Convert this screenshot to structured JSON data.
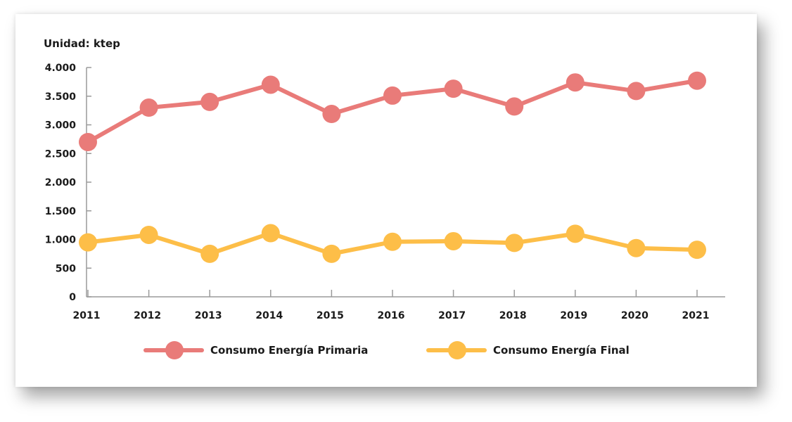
{
  "chart_data": {
    "type": "line",
    "unit_label": "Unidad: ktep",
    "categories": [
      "2011",
      "2012",
      "2013",
      "2014",
      "2015",
      "2016",
      "2017",
      "2018",
      "2019",
      "2020",
      "2021"
    ],
    "y_ticks": [
      {
        "value": 0,
        "label": "0"
      },
      {
        "value": 500,
        "label": "500"
      },
      {
        "value": 1000,
        "label": "1.000"
      },
      {
        "value": 1500,
        "label": "1.500"
      },
      {
        "value": 2000,
        "label": "2.000"
      },
      {
        "value": 2500,
        "label": "2.500"
      },
      {
        "value": 3000,
        "label": "3.000"
      },
      {
        "value": 3500,
        "label": "3.500"
      },
      {
        "value": 4000,
        "label": "4.000"
      }
    ],
    "ylim": [
      0,
      4000
    ],
    "grid": false,
    "legend_position": "bottom",
    "series": [
      {
        "name": "Consumo Energía Primaria",
        "color": "#E97B79",
        "values": [
          2700,
          3300,
          3400,
          3700,
          3190,
          3510,
          3630,
          3320,
          3740,
          3590,
          3770
        ]
      },
      {
        "name": "Consumo Energía Final",
        "color": "#FDBE48",
        "values": [
          950,
          1080,
          750,
          1110,
          750,
          960,
          970,
          940,
          1100,
          850,
          820
        ]
      }
    ]
  }
}
